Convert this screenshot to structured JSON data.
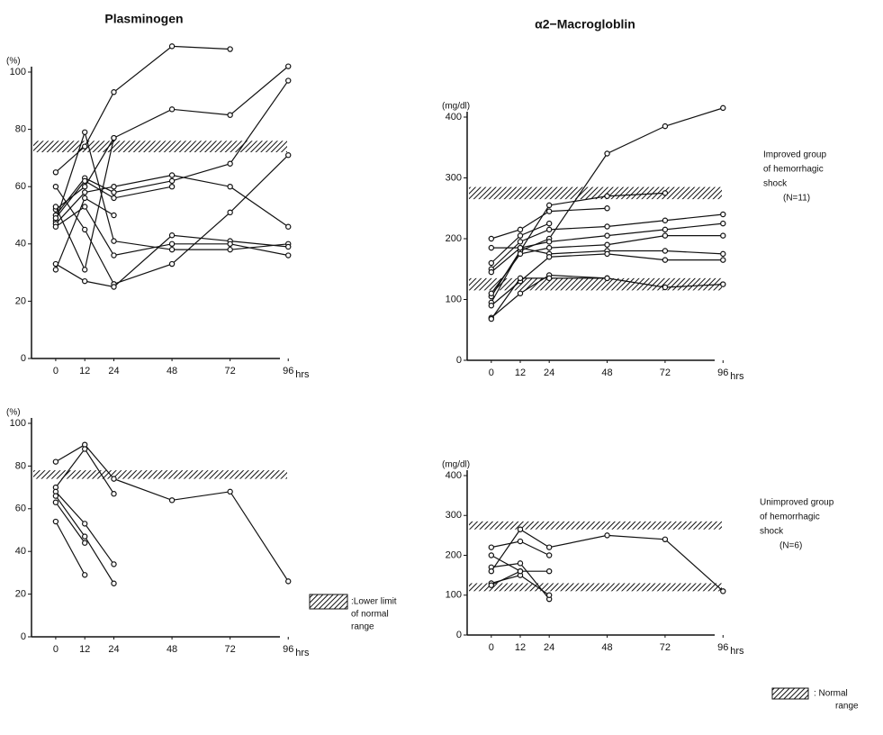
{
  "chart_data": [
    {
      "type": "line",
      "title": "Plasminogen",
      "y_unit": "(%)",
      "x_label": "hrs",
      "x": [
        0,
        12,
        24,
        48,
        72,
        96
      ],
      "xlim": [
        -10,
        100
      ],
      "ylim": [
        0,
        100
      ],
      "xticks": [
        0,
        12,
        24,
        48,
        72,
        96
      ],
      "yticks": [
        0,
        20,
        40,
        60,
        80,
        100
      ],
      "bands": [
        [
          72,
          76
        ]
      ],
      "color": "#111",
      "series": [
        {
          "values": [
            65,
            74,
            93,
            109,
            108,
            null
          ]
        },
        {
          "values": [
            52,
            60,
            77,
            87,
            85,
            102
          ]
        },
        {
          "values": [
            48,
            79,
            41,
            38,
            38,
            40
          ]
        },
        {
          "values": [
            47,
            58,
            60,
            64,
            60,
            46
          ]
        },
        {
          "values": [
            50,
            63,
            58,
            62,
            68,
            97
          ]
        },
        {
          "values": [
            49,
            62,
            56,
            60,
            null,
            null
          ]
        },
        {
          "values": [
            60,
            45,
            26,
            33,
            51,
            71
          ]
        },
        {
          "values": [
            53,
            31,
            77,
            null,
            null,
            null
          ]
        },
        {
          "values": [
            33,
            27,
            25,
            43,
            41,
            39
          ]
        },
        {
          "values": [
            31,
            56,
            50,
            null,
            null,
            null
          ]
        },
        {
          "values": [
            46,
            53,
            36,
            40,
            40,
            36
          ]
        }
      ]
    },
    {
      "type": "line",
      "title": "α2−Macrogloblin",
      "y_unit": "(mg/dl)",
      "x_label": "hrs",
      "x": [
        0,
        12,
        24,
        48,
        72,
        96
      ],
      "xlim": [
        -10,
        100
      ],
      "ylim": [
        0,
        400
      ],
      "xticks": [
        0,
        12,
        24,
        48,
        72,
        96
      ],
      "yticks": [
        0,
        100,
        200,
        300,
        400
      ],
      "bands": [
        [
          265,
          285
        ],
        [
          115,
          135
        ]
      ],
      "color": "#111",
      "annotation": [
        "Improved group",
        "of hemorrhagic",
        "shock",
        "(N=11)"
      ],
      "series": [
        {
          "values": [
            105,
            180,
            200,
            340,
            385,
            415
          ]
        },
        {
          "values": [
            95,
            180,
            255,
            270,
            275,
            null
          ]
        },
        {
          "values": [
            200,
            215,
            245,
            250,
            null,
            null
          ]
        },
        {
          "values": [
            160,
            205,
            225,
            null,
            null,
            null
          ]
        },
        {
          "values": [
            150,
            195,
            215,
            220,
            230,
            240
          ]
        },
        {
          "values": [
            145,
            185,
            195,
            205,
            215,
            225
          ]
        },
        {
          "values": [
            110,
            175,
            185,
            190,
            205,
            205
          ]
        },
        {
          "values": [
            185,
            185,
            175,
            180,
            180,
            175
          ]
        },
        {
          "values": [
            90,
            130,
            170,
            175,
            165,
            165
          ]
        },
        {
          "values": [
            70,
            110,
            140,
            135,
            120,
            125
          ]
        },
        {
          "values": [
            68,
            135,
            135,
            135,
            null,
            null
          ]
        }
      ]
    },
    {
      "type": "line",
      "y_unit": "(%)",
      "x_label": "hrs",
      "x": [
        0,
        12,
        24,
        48,
        72,
        96
      ],
      "xlim": [
        -10,
        100
      ],
      "ylim": [
        0,
        100
      ],
      "xticks": [
        0,
        12,
        24,
        48,
        72,
        96
      ],
      "yticks": [
        0,
        20,
        40,
        60,
        80,
        100
      ],
      "bands": [
        [
          74,
          78
        ]
      ],
      "color": "#111",
      "legend_note": [
        ":Lower limit",
        "of normal",
        "range"
      ],
      "series": [
        {
          "values": [
            82,
            90,
            74,
            64,
            68,
            26
          ]
        },
        {
          "values": [
            70,
            88,
            67,
            null,
            null,
            null
          ]
        },
        {
          "values": [
            68,
            53,
            34,
            null,
            null,
            null
          ]
        },
        {
          "values": [
            66,
            47,
            25,
            null,
            null,
            null
          ]
        },
        {
          "values": [
            63,
            44,
            null,
            null,
            null,
            null
          ]
        },
        {
          "values": [
            54,
            29,
            null,
            null,
            null,
            null
          ]
        }
      ]
    },
    {
      "type": "line",
      "y_unit": "(mg/dl)",
      "x_label": "hrs",
      "x": [
        0,
        12,
        24,
        48,
        72,
        96
      ],
      "xlim": [
        -10,
        100
      ],
      "ylim": [
        0,
        400
      ],
      "xticks": [
        0,
        12,
        24,
        48,
        72,
        96
      ],
      "yticks": [
        0,
        100,
        200,
        300,
        400
      ],
      "bands": [
        [
          265,
          285
        ],
        [
          110,
          130
        ]
      ],
      "color": "#111",
      "annotation": [
        "Unimproved group",
        "of hemorrhagic",
        "shock",
        "(N=6)"
      ],
      "legend_note": [
        ": Normal",
        "range"
      ],
      "series": [
        {
          "values": [
            220,
            235,
            200,
            null,
            null,
            null
          ]
        },
        {
          "values": [
            200,
            160,
            160,
            null,
            null,
            null
          ]
        },
        {
          "values": [
            170,
            180,
            90,
            null,
            null,
            null
          ]
        },
        {
          "values": [
            160,
            265,
            220,
            250,
            240,
            110
          ]
        },
        {
          "values": [
            130,
            150,
            100,
            null,
            null,
            null
          ]
        },
        {
          "values": [
            125,
            160,
            null,
            null,
            null,
            null
          ]
        }
      ]
    }
  ]
}
